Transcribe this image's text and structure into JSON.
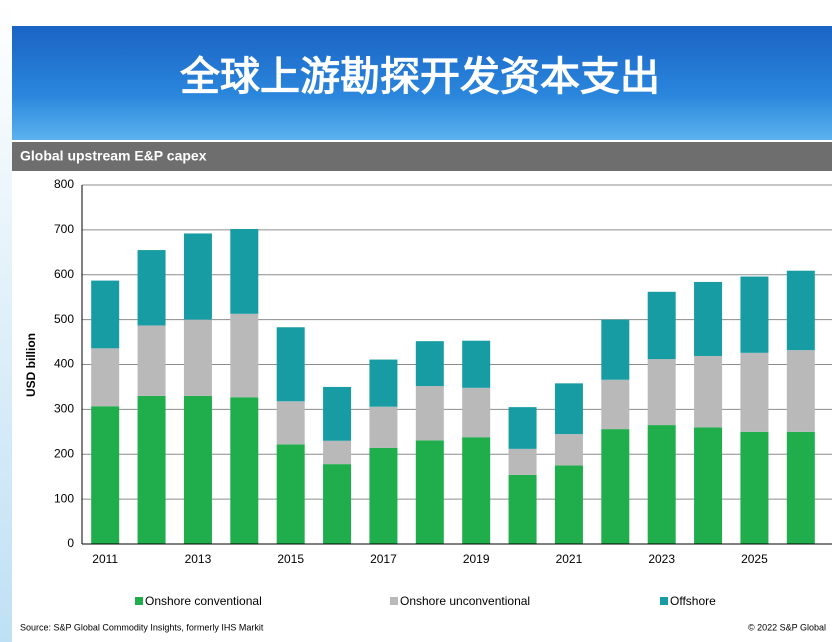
{
  "header": {
    "title": "全球上游勘探开发资本支出"
  },
  "chart_data": {
    "type": "stacked-bar",
    "title": "Global upstream E&P capex",
    "y_label": "USD billion",
    "categories": [
      "2011",
      null,
      "2013",
      null,
      "2015",
      null,
      "2017",
      null,
      "2019",
      null,
      "2021",
      null,
      "2023",
      null,
      "2025",
      null
    ],
    "series": [
      {
        "name": "Onshore conventional",
        "color": "#1fae4b",
        "values": [
          307,
          330,
          330,
          327,
          222,
          178,
          214,
          231,
          238,
          154,
          175,
          256,
          265,
          260,
          250,
          250
        ]
      },
      {
        "name": "Onshore unconventional",
        "color": "#b9b9b9",
        "values": [
          129,
          157,
          170,
          186,
          96,
          52,
          92,
          121,
          110,
          58,
          70,
          110,
          147,
          159,
          176,
          182
        ]
      },
      {
        "name": "Offshore",
        "color": "#179ca4",
        "values": [
          151,
          168,
          192,
          189,
          165,
          120,
          105,
          100,
          105,
          93,
          113,
          134,
          150,
          165,
          170,
          177
        ]
      }
    ],
    "ylim": [
      0,
      800
    ],
    "yticks": [
      0,
      100,
      200,
      300,
      400,
      500,
      600,
      700,
      800
    ],
    "grid": true,
    "legend": "bottom",
    "source": "Source: S&P Global Commodity Insights, formerly IHS Markit",
    "copyright": "© 2022 S&P Global"
  }
}
